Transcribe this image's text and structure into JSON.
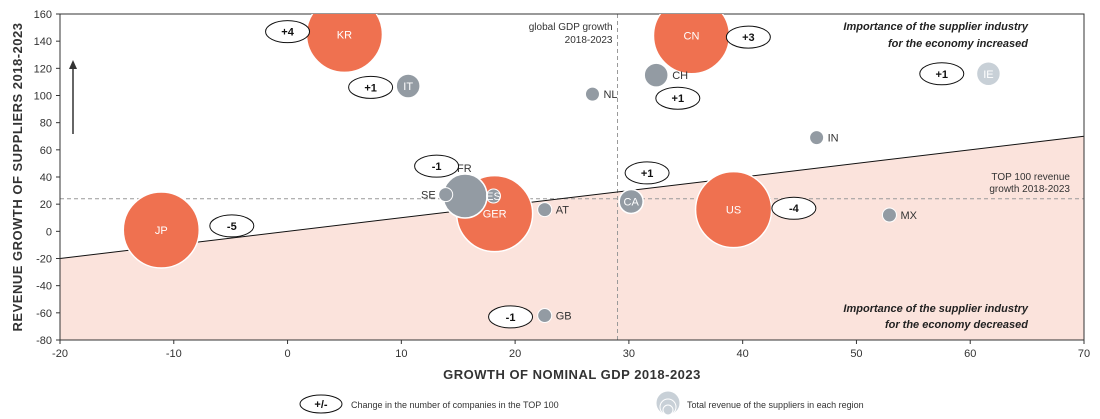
{
  "chart_data": {
    "type": "scatter",
    "xlabel": "GROWTH OF NOMINAL GDP 2018-2023",
    "ylabel": "REVENUE GROWTH OF SUPPLIERS 2018-2023",
    "xlim": [
      -20,
      70
    ],
    "ylim": [
      -80,
      160
    ],
    "xticks": [
      -20,
      -10,
      0,
      10,
      20,
      30,
      40,
      50,
      60,
      70
    ],
    "yticks": [
      -80,
      -60,
      -40,
      -20,
      0,
      20,
      40,
      60,
      80,
      100,
      120,
      140,
      160
    ],
    "grid": false,
    "reference_lines": {
      "global_gdp_growth_x": 29,
      "global_gdp_label_line1": "global GDP growth",
      "global_gdp_label_line2": "2018-2023",
      "top100_growth_y": 24,
      "top100_label_line1": "TOP 100 revenue",
      "top100_label_line2": "growth 2018-2023"
    },
    "diagonal_line": {
      "x": [
        -20,
        70
      ],
      "y": [
        -20,
        70
      ]
    },
    "region_labels": {
      "upper_line1": "Importance of the supplier industry",
      "upper_line2": "for the economy increased",
      "lower_line1": "Importance of the supplier industry",
      "lower_line2": "for the economy decreased"
    },
    "points": [
      {
        "label": "KR",
        "x": 5,
        "y": 145,
        "size": "large",
        "color": "#ef7150",
        "label_inside": true,
        "change": "+4",
        "change_x": 0,
        "change_y": 147
      },
      {
        "label": "CN",
        "x": 35.5,
        "y": 144,
        "size": "large",
        "color": "#ef7150",
        "label_inside": true,
        "change": "+3",
        "change_x": 40.5,
        "change_y": 143
      },
      {
        "label": "IT",
        "x": 10.6,
        "y": 107,
        "size": "small",
        "color": "#939ba3",
        "label_inside": true,
        "change": "+1",
        "change_x": 7.3,
        "change_y": 106
      },
      {
        "label": "CH",
        "x": 32.4,
        "y": 115,
        "size": "small",
        "color": "#939ba3",
        "label_inside": false,
        "change": "+1",
        "change_x": 34.3,
        "change_y": 98
      },
      {
        "label": "IE",
        "x": 61.6,
        "y": 116,
        "size": "small",
        "color": "#c8d0d7",
        "label_inside": true,
        "change": "+1",
        "change_x": 57.5,
        "change_y": 116
      },
      {
        "label": "NL",
        "x": 26.8,
        "y": 101,
        "size": "tiny",
        "color": "#939ba3",
        "label_inside": false,
        "change": "",
        "change_x": 0,
        "change_y": 0
      },
      {
        "label": "IN",
        "x": 46.5,
        "y": 69,
        "size": "tiny",
        "color": "#939ba3",
        "label_inside": false,
        "change": "",
        "change_x": 0,
        "change_y": 0
      },
      {
        "label": "FR",
        "x": 15.6,
        "y": 26,
        "size": "medium",
        "color": "#939ba3",
        "label_inside": false,
        "change": "-1",
        "change_x": 13.1,
        "change_y": 48
      },
      {
        "label": "SE",
        "x": 13.9,
        "y": 27,
        "size": "tiny",
        "color": "#939ba3",
        "label_inside": false,
        "change": "",
        "change_x": 0,
        "change_y": 0
      },
      {
        "label": "GER",
        "x": 18.2,
        "y": 13,
        "size": "large",
        "color": "#ef7150",
        "label_inside": true,
        "change": "",
        "change_x": 0,
        "change_y": 0
      },
      {
        "label": "ES",
        "x": 18.1,
        "y": 26,
        "size": "tiny",
        "color": "#939ba3",
        "label_inside": true,
        "change": "",
        "change_x": 0,
        "change_y": 0
      },
      {
        "label": "AT",
        "x": 22.6,
        "y": 16,
        "size": "tiny",
        "color": "#939ba3",
        "label_inside": false,
        "change": "",
        "change_x": 0,
        "change_y": 0
      },
      {
        "label": "CA",
        "x": 30.2,
        "y": 22,
        "size": "small",
        "color": "#939ba3",
        "label_inside": true,
        "change": "+1",
        "change_x": 31.6,
        "change_y": 43
      },
      {
        "label": "US",
        "x": 39.2,
        "y": 16,
        "size": "large",
        "color": "#ef7150",
        "label_inside": true,
        "change": "-4",
        "change_x": 44.5,
        "change_y": 17
      },
      {
        "label": "MX",
        "x": 52.9,
        "y": 12,
        "size": "tiny",
        "color": "#939ba3",
        "label_inside": false,
        "change": "",
        "change_x": 0,
        "change_y": 0
      },
      {
        "label": "JP",
        "x": -11.1,
        "y": 1,
        "size": "large",
        "color": "#ef7150",
        "label_inside": true,
        "change": "-5",
        "change_x": -4.9,
        "change_y": 4
      },
      {
        "label": "GB",
        "x": 22.6,
        "y": -62,
        "size": "tiny",
        "color": "#939ba3",
        "label_inside": false,
        "change": "-1",
        "change_x": 19.6,
        "change_y": -63
      }
    ],
    "legend": {
      "placement": "bottom",
      "change_symbol": "+/-",
      "change_text": "Change in the number of companies in the TOP 100",
      "size_text": "Total revenue of the suppliers in each region"
    },
    "colors": {
      "highlight": "#ef7150",
      "neutral": "#939ba3",
      "light": "#c8d0d7",
      "lower_region_fill": "#fbe3dc"
    }
  }
}
